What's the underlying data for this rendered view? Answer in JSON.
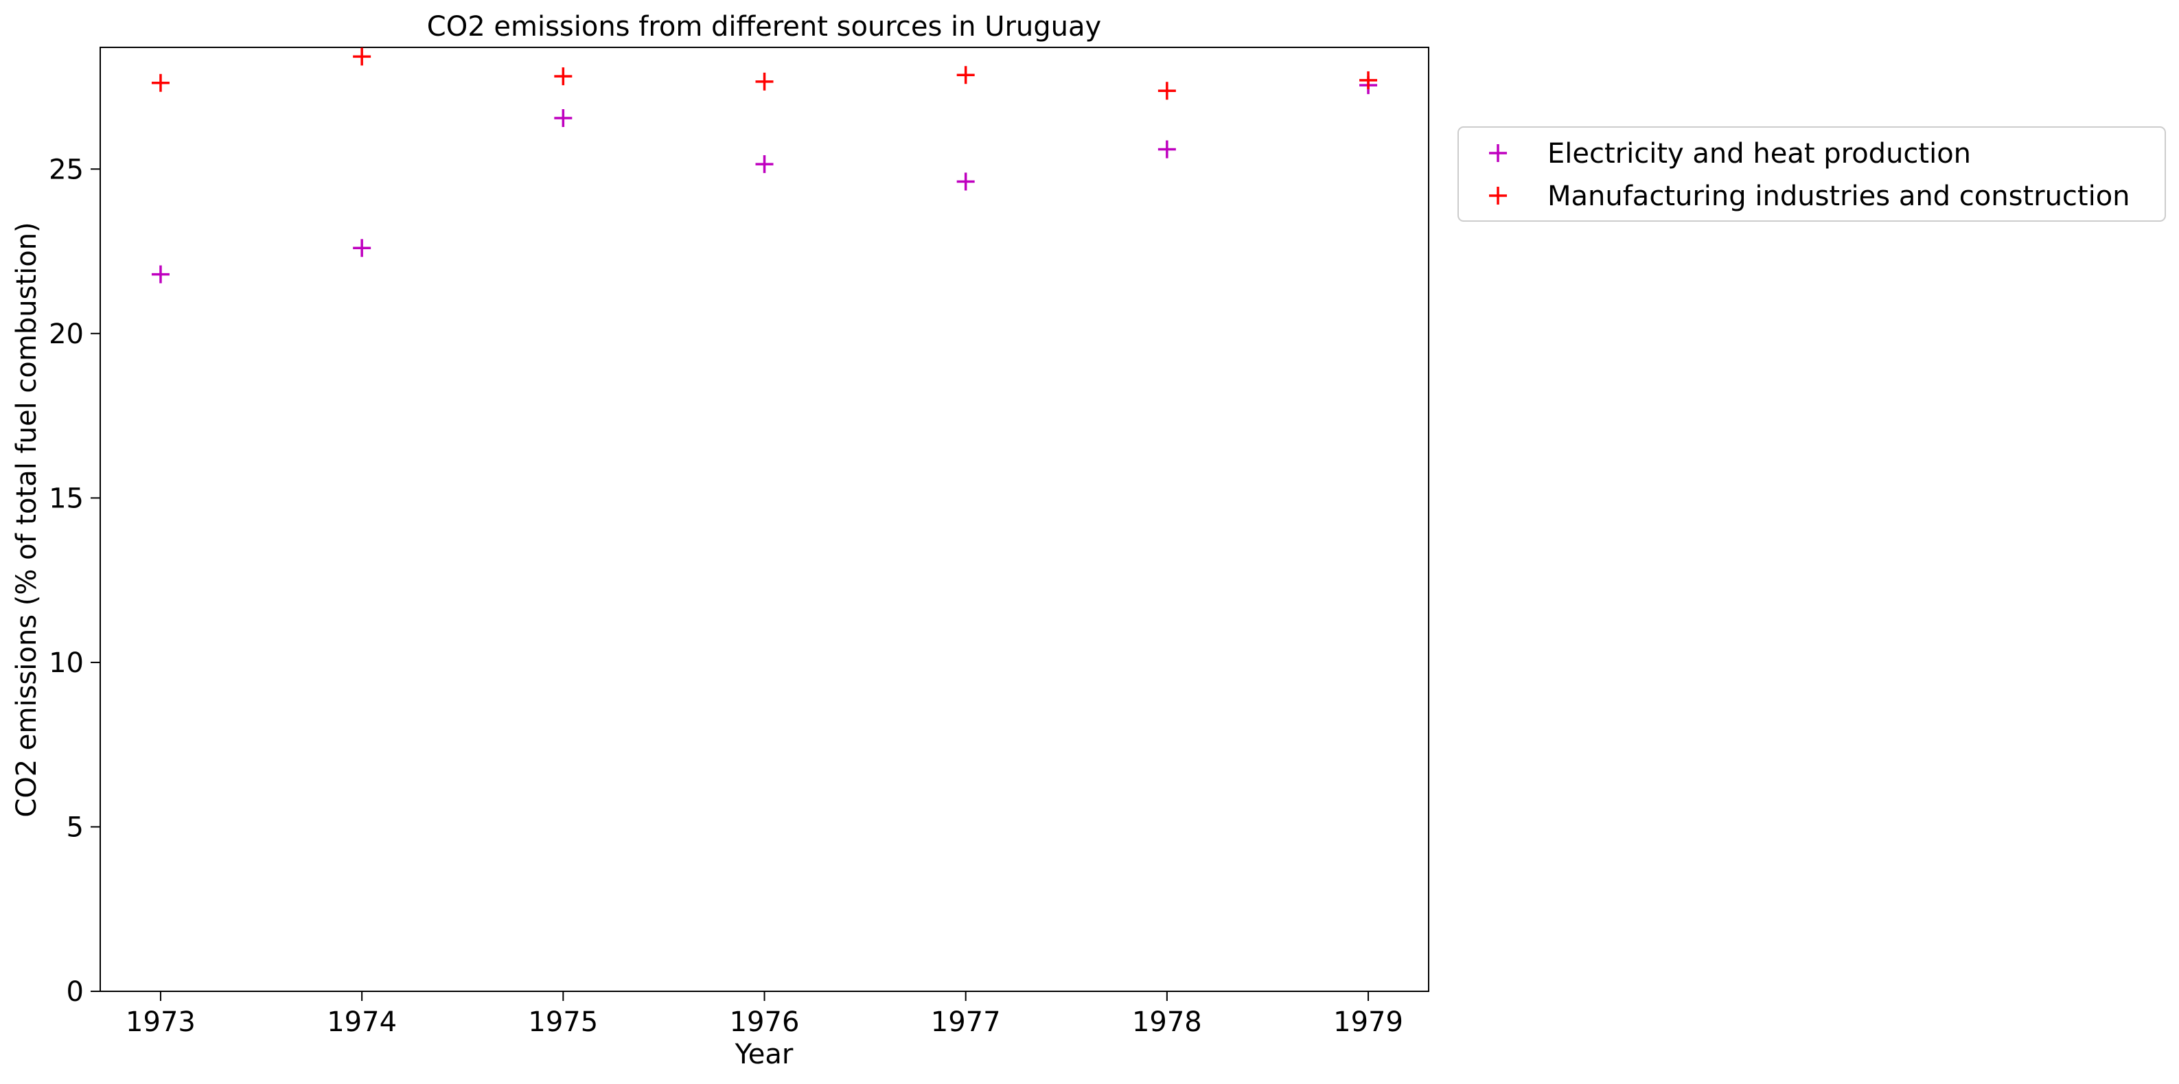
{
  "chart_data": {
    "type": "scatter",
    "title": "CO2 emissions from different sources in Uruguay",
    "xlabel": "Year",
    "ylabel": "CO2 emissions (% of total fuel combustion)",
    "x": [
      "1973",
      "1974",
      "1975",
      "1976",
      "1977",
      "1978",
      "1979"
    ],
    "xlim": [
      1972.7,
      1979.3
    ],
    "ylim": [
      0,
      28.7
    ],
    "yticks": [
      "0",
      "5",
      "10",
      "15",
      "20",
      "25"
    ],
    "yticks_values": [
      0,
      5,
      10,
      15,
      20,
      25
    ],
    "grid": false,
    "legend_position": "outside-right-top",
    "marker": "+",
    "series": [
      {
        "name": "Electricity and heat production",
        "color": "#bf00bf",
        "values": [
          21.8,
          22.6,
          26.55,
          25.15,
          24.62,
          25.6,
          27.55
        ]
      },
      {
        "name": "Manufacturing industries and construction",
        "color": "#ff0000",
        "values": [
          27.62,
          28.42,
          27.82,
          27.66,
          27.86,
          27.38,
          27.7
        ]
      }
    ]
  }
}
